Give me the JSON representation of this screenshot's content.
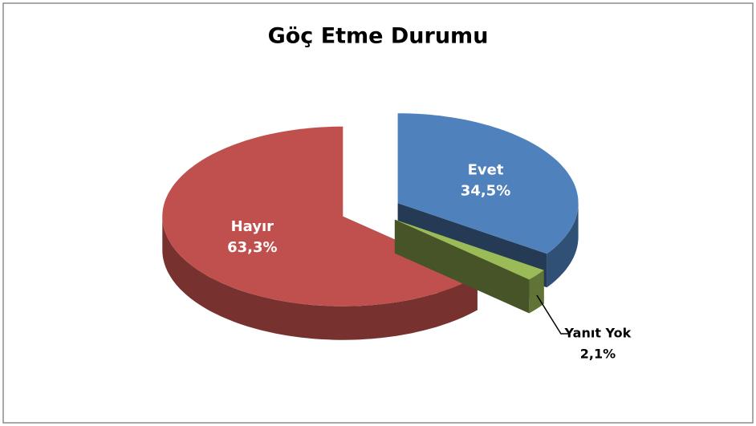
{
  "chart_data": {
    "type": "pie3d",
    "title": "Göç Etme Durumu",
    "categories": [
      "Evet",
      "Yanıt Yok",
      "Hayır"
    ],
    "values": [
      34.5,
      2.1,
      63.3
    ],
    "value_labels": [
      "34,5%",
      "2,1%",
      "63,3%"
    ],
    "colors": [
      "#4f81bd",
      "#9bbb59",
      "#c0504d"
    ]
  }
}
